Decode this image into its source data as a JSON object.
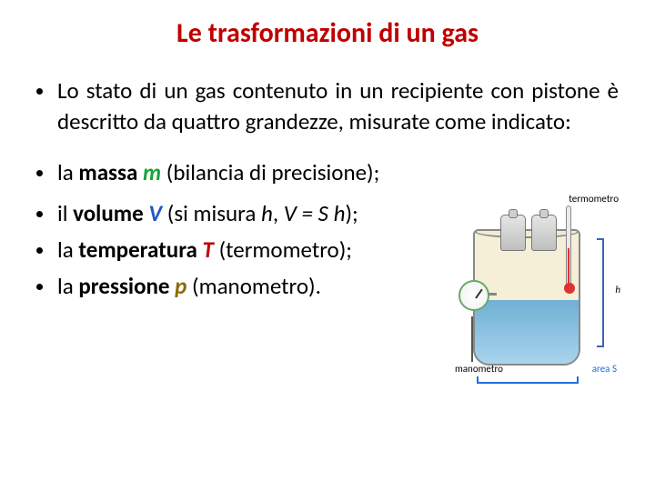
{
  "title": {
    "text": "Le trasformazioni di un gas",
    "color": "#c00000"
  },
  "intro": {
    "text": "Lo stato di un gas contenuto in un recipiente con pistone è descritto da quattro grandezze, misurate come indicato:"
  },
  "bullets": {
    "massa": {
      "prefix": "la ",
      "strong": "massa ",
      "sym": "m",
      "sym_color": "#17a33b",
      "rest": " (bilancia di precisione);"
    },
    "volume": {
      "prefix": "il ",
      "strong": "volume ",
      "sym": "V",
      "sym_color": "#2356c5",
      "rest1": " (si misura ",
      "h": "h",
      "mid": ", ",
      "eq": "V = S h",
      "rest2": ");"
    },
    "temperatura": {
      "prefix": "la ",
      "strong": "temperatura ",
      "sym": "T",
      "sym_color": "#c00000",
      "rest": " (termometro);"
    },
    "pressione": {
      "prefix": "la ",
      "strong": "pressione ",
      "sym": "p",
      "sym_color": "#8d6a00",
      "rest": " (manometro)."
    }
  },
  "figure": {
    "labels": {
      "termometro": "termometro",
      "h": "h",
      "manometro": "manometro",
      "area": "area S"
    },
    "colors": {
      "gas": "#f5efd8",
      "liquid_top": "#6fb0d4",
      "liquid_bot": "#a9d4ec",
      "cylinder_border": "#888888",
      "gauge_ring": "#66aa66",
      "bracket": "#3a66b5",
      "area_label": "#1f6fd6",
      "mercury": "#dd3333"
    }
  }
}
